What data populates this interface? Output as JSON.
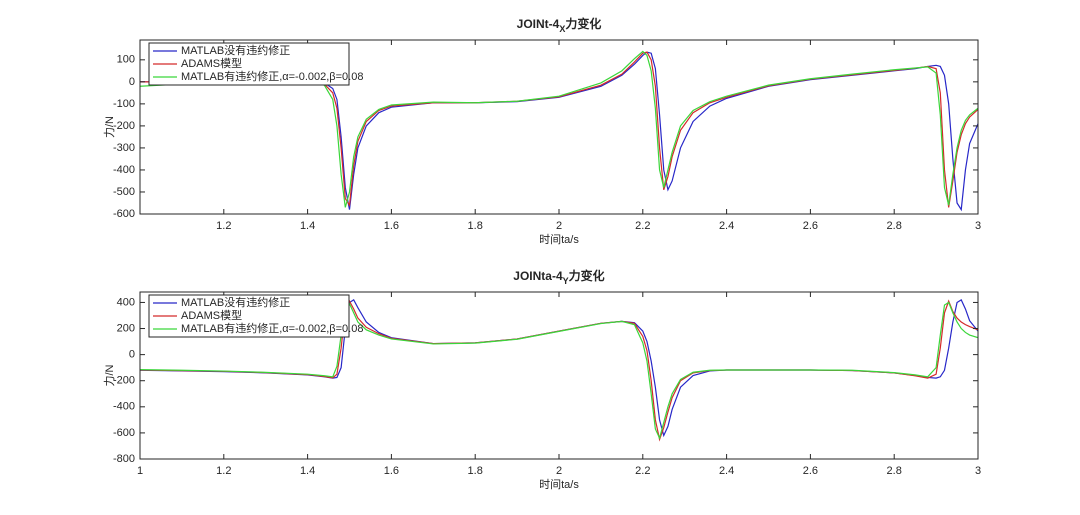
{
  "chart_data": [
    {
      "type": "line",
      "title_parts": [
        "JOINt-4",
        "X",
        "力变化"
      ],
      "xlabel": "时间ta/s",
      "ylabel": "力/N",
      "xlim": [
        1,
        3
      ],
      "xticks": [
        1.2,
        1.4,
        1.6,
        1.8,
        2,
        2.2,
        2.4,
        2.6,
        2.8,
        3
      ],
      "ylim": [
        -600,
        190
      ],
      "yticks": [
        -600,
        -500,
        -400,
        -300,
        -200,
        -100,
        0,
        100
      ],
      "legend": "upper-left",
      "x": [
        1.0,
        1.1,
        1.2,
        1.3,
        1.4,
        1.44,
        1.46,
        1.47,
        1.48,
        1.49,
        1.5,
        1.51,
        1.52,
        1.54,
        1.57,
        1.6,
        1.7,
        1.8,
        1.9,
        2.0,
        2.1,
        2.15,
        2.18,
        2.2,
        2.21,
        2.22,
        2.23,
        2.24,
        2.25,
        2.26,
        2.27,
        2.29,
        2.32,
        2.36,
        2.4,
        2.5,
        2.6,
        2.7,
        2.8,
        2.85,
        2.88,
        2.9,
        2.91,
        2.92,
        2.93,
        2.94,
        2.95,
        2.96,
        2.97,
        2.98,
        3.0
      ],
      "series": [
        {
          "name": "MATLAB没有违约修正",
          "color": "#2727c8",
          "values": [
            0,
            0,
            0,
            0,
            0,
            -5,
            -30,
            -80,
            -250,
            -480,
            -580,
            -420,
            -300,
            -200,
            -140,
            -115,
            -95,
            -95,
            -90,
            -70,
            -20,
            30,
            80,
            120,
            135,
            130,
            60,
            -150,
            -400,
            -490,
            -450,
            -300,
            -180,
            -110,
            -75,
            -20,
            10,
            30,
            50,
            60,
            70,
            75,
            70,
            30,
            -100,
            -350,
            -550,
            -580,
            -400,
            -280,
            -190
          ]
        },
        {
          "name": "ADAMS模型",
          "color": "#d42a2a",
          "values": [
            0,
            0,
            0,
            0,
            0,
            -10,
            -50,
            -120,
            -300,
            -530,
            -560,
            -380,
            -270,
            -180,
            -130,
            -110,
            -95,
            -95,
            -88,
            -68,
            -15,
            35,
            90,
            130,
            135,
            100,
            -20,
            -300,
            -490,
            -430,
            -340,
            -220,
            -140,
            -95,
            -70,
            -18,
            12,
            32,
            52,
            62,
            70,
            60,
            -50,
            -400,
            -570,
            -450,
            -320,
            -240,
            -190,
            -160,
            -125
          ]
        },
        {
          "name": "MATLAB有违约修正,α=-0.002,β=0.08",
          "color": "#3ad63a",
          "values": [
            -20,
            -10,
            -5,
            0,
            0,
            -15,
            -80,
            -200,
            -420,
            -570,
            -500,
            -340,
            -250,
            -170,
            -125,
            -105,
            -92,
            -95,
            -88,
            -65,
            -5,
            50,
            105,
            138,
            120,
            50,
            -120,
            -400,
            -480,
            -400,
            -320,
            -200,
            -130,
            -90,
            -65,
            -15,
            14,
            35,
            55,
            63,
            68,
            40,
            -150,
            -480,
            -560,
            -420,
            -300,
            -220,
            -175,
            -150,
            -120
          ]
        }
      ]
    },
    {
      "type": "line",
      "title_parts": [
        "JOINta-4",
        "Y",
        "力变化"
      ],
      "xlabel": "时间ta/s",
      "ylabel": "力/N",
      "xlim": [
        1,
        3
      ],
      "xticks": [
        1,
        1.2,
        1.4,
        1.6,
        1.8,
        2,
        2.2,
        2.4,
        2.6,
        2.8,
        3
      ],
      "ylim": [
        -800,
        480
      ],
      "yticks": [
        -800,
        -600,
        -400,
        -200,
        0,
        200,
        400
      ],
      "legend": "upper-left",
      "x": [
        1.0,
        1.1,
        1.2,
        1.3,
        1.4,
        1.44,
        1.46,
        1.47,
        1.48,
        1.49,
        1.5,
        1.51,
        1.52,
        1.54,
        1.57,
        1.6,
        1.7,
        1.8,
        1.9,
        2.0,
        2.1,
        2.15,
        2.18,
        2.2,
        2.21,
        2.22,
        2.23,
        2.24,
        2.25,
        2.26,
        2.27,
        2.29,
        2.32,
        2.36,
        2.4,
        2.5,
        2.6,
        2.7,
        2.8,
        2.85,
        2.88,
        2.9,
        2.91,
        2.92,
        2.93,
        2.94,
        2.95,
        2.96,
        2.97,
        2.98,
        3.0
      ],
      "series": [
        {
          "name": "MATLAB没有违约修正",
          "color": "#2727c8",
          "values": [
            -120,
            -125,
            -130,
            -140,
            -155,
            -170,
            -180,
            -175,
            -100,
            200,
            400,
            420,
            360,
            250,
            170,
            130,
            85,
            90,
            120,
            180,
            240,
            255,
            245,
            180,
            100,
            -50,
            -250,
            -500,
            -620,
            -550,
            -420,
            -250,
            -160,
            -125,
            -118,
            -118,
            -118,
            -122,
            -140,
            -160,
            -175,
            -180,
            -170,
            -120,
            50,
            250,
            400,
            420,
            350,
            260,
            180
          ]
        },
        {
          "name": "ADAMS模型",
          "color": "#d42a2a",
          "values": [
            -118,
            -123,
            -128,
            -138,
            -153,
            -168,
            -178,
            -150,
            50,
            350,
            410,
            350,
            280,
            210,
            160,
            125,
            85,
            90,
            120,
            180,
            240,
            255,
            240,
            140,
            30,
            -200,
            -500,
            -650,
            -560,
            -440,
            -330,
            -200,
            -140,
            -122,
            -118,
            -118,
            -118,
            -122,
            -140,
            -162,
            -180,
            -150,
            50,
            320,
            410,
            330,
            280,
            250,
            230,
            215,
            190
          ]
        },
        {
          "name": "MATLAB有违约修正,α=-0.002,β=0.08",
          "color": "#3ad63a",
          "values": [
            -115,
            -120,
            -126,
            -136,
            -150,
            -162,
            -170,
            -90,
            150,
            390,
            390,
            320,
            250,
            190,
            150,
            120,
            82,
            88,
            118,
            178,
            238,
            255,
            230,
            90,
            -50,
            -300,
            -570,
            -640,
            -520,
            -400,
            -300,
            -190,
            -135,
            -120,
            -118,
            -118,
            -118,
            -120,
            -138,
            -155,
            -170,
            -100,
            150,
            380,
            400,
            320,
            250,
            200,
            170,
            150,
            130
          ]
        }
      ]
    }
  ]
}
